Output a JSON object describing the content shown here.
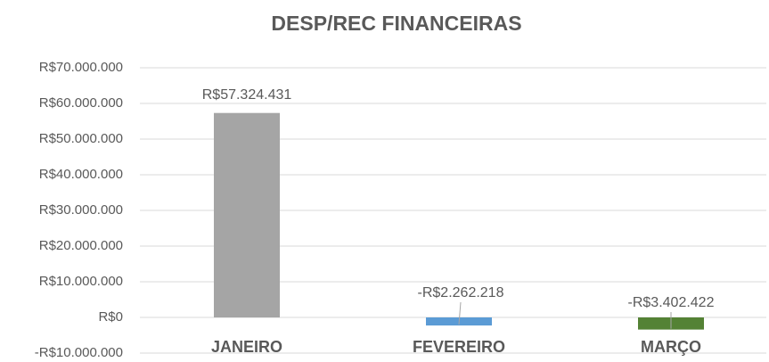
{
  "chart_data": {
    "type": "bar",
    "title": "DESP/REC FINANCEIRAS",
    "categories": [
      "JANEIRO",
      "FEVEREIRO",
      "MARÇO"
    ],
    "values": [
      57324431,
      -2262218,
      -3402422
    ],
    "value_labels": [
      "R$57.324.431",
      "-R$2.262.218",
      "-R$3.402.422"
    ],
    "colors": [
      "#a5a5a5",
      "#5b9bd5",
      "#548235"
    ],
    "ylim": [
      -10000000,
      70000000
    ],
    "yticks": [
      {
        "value": -10000000,
        "label": "-R$10.000.000"
      },
      {
        "value": 0,
        "label": "R$0"
      },
      {
        "value": 10000000,
        "label": "R$10.000.000"
      },
      {
        "value": 20000000,
        "label": "R$20.000.000"
      },
      {
        "value": 30000000,
        "label": "R$30.000.000"
      },
      {
        "value": 40000000,
        "label": "R$40.000.000"
      },
      {
        "value": 50000000,
        "label": "R$50.000.000"
      },
      {
        "value": 60000000,
        "label": "R$60.000.000"
      },
      {
        "value": 70000000,
        "label": "R$70.000.000"
      }
    ],
    "grid": true
  }
}
